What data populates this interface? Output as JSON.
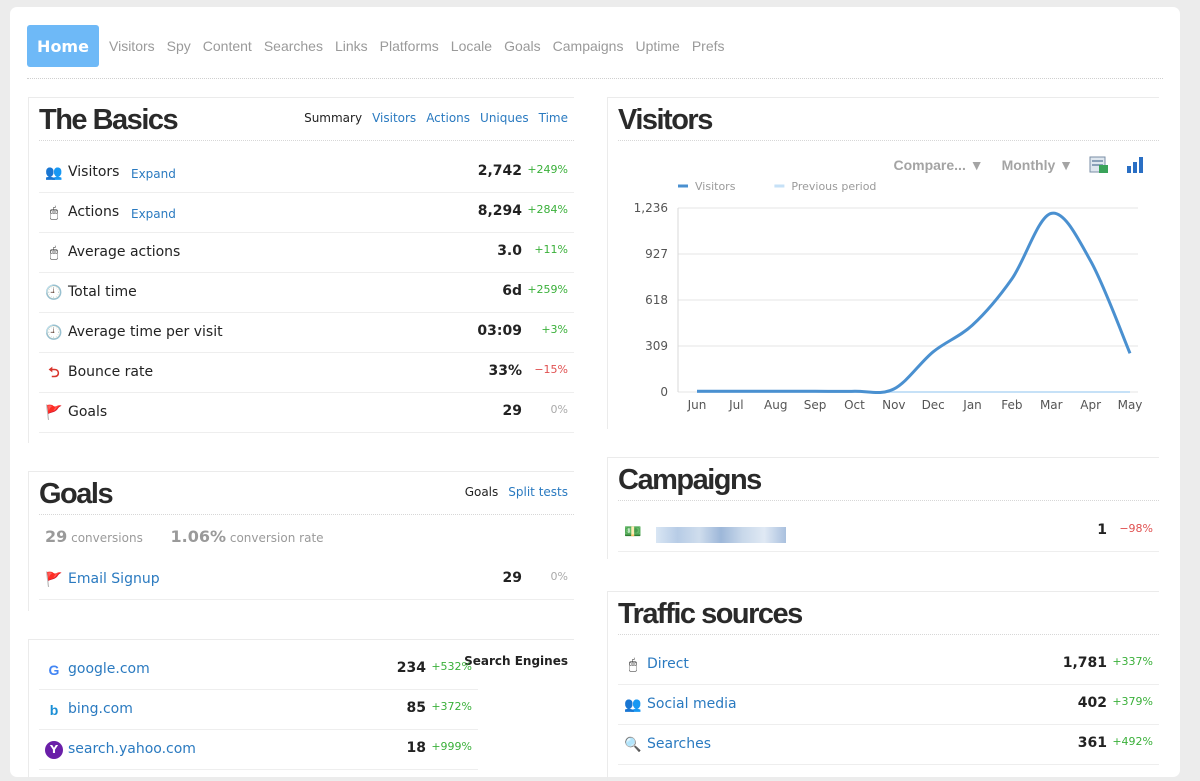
{
  "nav": {
    "home": "Home",
    "items": [
      "Visitors",
      "Spy",
      "Content",
      "Searches",
      "Links",
      "Platforms",
      "Locale",
      "Goals",
      "Campaigns",
      "Uptime",
      "Prefs"
    ]
  },
  "basics": {
    "title": "The Basics",
    "tabs": [
      "Summary",
      "Visitors",
      "Actions",
      "Uniques",
      "Time"
    ],
    "rows": [
      {
        "label": "Visitors",
        "expand": "Expand",
        "value": "2,742",
        "change": "+249%"
      },
      {
        "label": "Actions",
        "expand": "Expand",
        "value": "8,294",
        "change": "+284%"
      },
      {
        "label": "Average actions",
        "value": "3.0",
        "change": "+11%"
      },
      {
        "label": "Total time",
        "value": "6d",
        "change": "+259%"
      },
      {
        "label": "Average time per visit",
        "value": "03:09",
        "change": "+3%"
      },
      {
        "label": "Bounce rate",
        "value": "33%",
        "change": "−15%"
      },
      {
        "label": "Goals",
        "value": "29",
        "change": "0%"
      }
    ]
  },
  "goals": {
    "title": "Goals",
    "tabs": [
      "Goals",
      "Split tests"
    ],
    "conversions": "29",
    "conversions_label": "conversions",
    "rate": "1.06%",
    "rate_label": "conversion rate",
    "rows": [
      {
        "label": "Email Signup",
        "value": "29",
        "change": "0%"
      }
    ]
  },
  "search": {
    "label": "Search Engines",
    "rows": [
      {
        "label": "google.com",
        "value": "234",
        "change": "+532%"
      },
      {
        "label": "bing.com",
        "value": "85",
        "change": "+372%"
      },
      {
        "label": "search.yahoo.com",
        "value": "18",
        "change": "+999%"
      }
    ]
  },
  "visitors_chart": {
    "title": "Visitors",
    "compare": "Compare... ▼",
    "period": "Monthly ▼"
  },
  "campaigns": {
    "title": "Campaigns",
    "rows": [
      {
        "value": "1",
        "change": "−98%"
      }
    ]
  },
  "traffic": {
    "title": "Traffic sources",
    "rows": [
      {
        "label": "Direct",
        "value": "1,781",
        "change": "+337%"
      },
      {
        "label": "Social media",
        "value": "402",
        "change": "+379%"
      },
      {
        "label": "Searches",
        "value": "361",
        "change": "+492%"
      }
    ]
  },
  "colors": {
    "accent": "#6eb9f7",
    "link": "#2a7ac0",
    "series": "#4a90d0",
    "previous": "#c6e1f7",
    "positive": "#3ab03a",
    "negative": "#e05050"
  },
  "chart_data": {
    "type": "line",
    "x": [
      "Jun",
      "Jul",
      "Aug",
      "Sep",
      "Oct",
      "Nov",
      "Dec",
      "Jan",
      "Feb",
      "Mar",
      "Apr",
      "May"
    ],
    "series": [
      {
        "name": "Visitors",
        "values": [
          5,
          5,
          5,
          5,
          5,
          20,
          270,
          450,
          760,
          1200,
          880,
          260
        ]
      },
      {
        "name": "Previous period",
        "values": [
          0,
          0,
          0,
          0,
          0,
          0,
          0,
          0,
          0,
          0,
          0,
          0
        ]
      }
    ],
    "yticks": [
      "1,236",
      "927",
      "618",
      "309",
      "0"
    ],
    "ylim": [
      0,
      1236
    ],
    "grid": true,
    "legend": "top-left"
  }
}
